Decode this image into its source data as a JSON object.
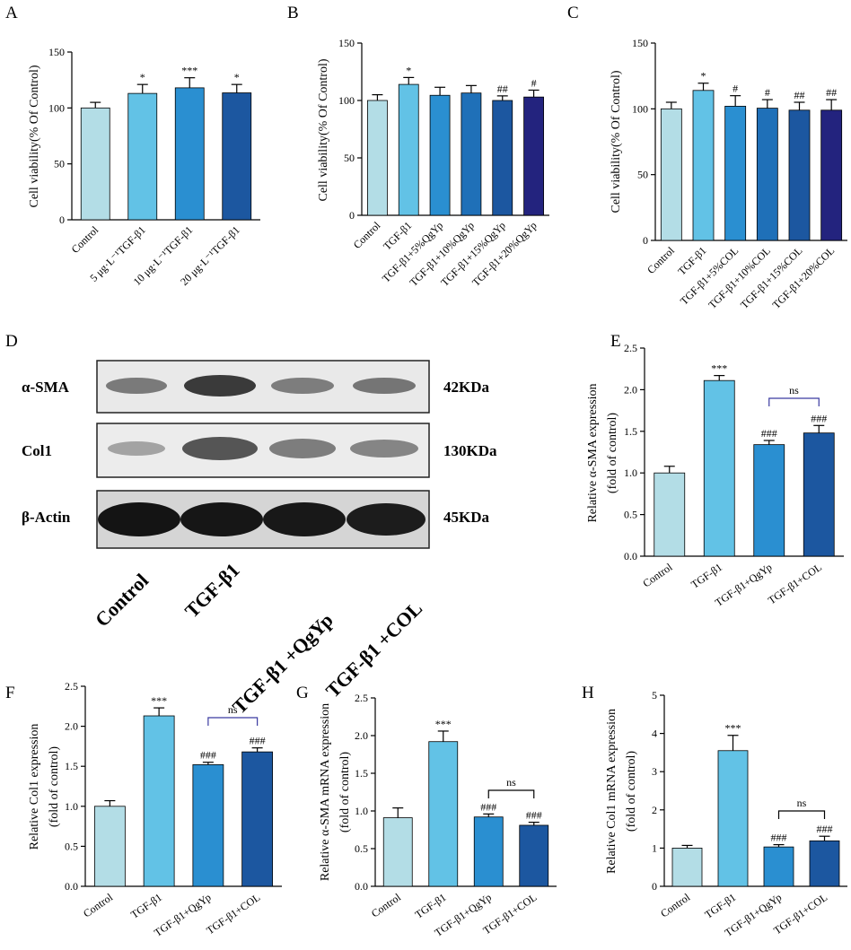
{
  "colors": {
    "c1": "#b3dde6",
    "c2": "#62c2e6",
    "c3": "#2a8fd1",
    "c4": "#1f70b8",
    "c5": "#1c57a0",
    "c6": "#23237e",
    "ns_bracket": "#3a3aa0",
    "axis": "#000000"
  },
  "western_blot": {
    "panel": "D",
    "rows": [
      {
        "label": "α-SMA",
        "kda": "42KDa"
      },
      {
        "label": "Col1",
        "kda": "130KDa"
      },
      {
        "label": "β-Actin",
        "kda": "45KDa"
      }
    ],
    "groups": [
      "Control",
      "TGF-β1",
      "TGF-β1 +QgYp",
      "TGF-β1 +COL"
    ]
  },
  "chart_data": [
    {
      "panel": "A",
      "type": "bar",
      "ylabel": "Cell viability(% Of Control)",
      "ylim": [
        0,
        150
      ],
      "yticks": [
        "0",
        "50",
        "100",
        "150"
      ],
      "categories": [
        "Control",
        "5 μg·L⁻¹TGF-β1",
        "10 μg·L⁻¹TGF-β1",
        "20 μg·L⁻¹TGF-β1"
      ],
      "values": [
        100,
        113,
        118,
        113.5
      ],
      "errors": [
        5,
        8,
        9,
        7.5
      ],
      "labels": [
        "",
        "*",
        "***",
        "*"
      ],
      "colors": [
        "c1",
        "c2",
        "c3",
        "c5"
      ]
    },
    {
      "panel": "B",
      "type": "bar",
      "ylabel": "Cell viability(% Of Control)",
      "ylim": [
        0,
        150
      ],
      "yticks": [
        "0",
        "50",
        "100",
        "150"
      ],
      "categories": [
        "Control",
        "TGF-β1",
        "TGF-β1+5%QgYp",
        "TGF-β1+10%QgYp",
        "TGF-β1+15%QgYp",
        "TGF-β1+20%QgYp"
      ],
      "values": [
        100,
        114,
        104.5,
        106.5,
        100,
        103
      ],
      "errors": [
        5,
        6,
        7,
        6.5,
        4,
        6
      ],
      "labels": [
        "",
        "*",
        "",
        "",
        "##",
        "#"
      ],
      "colors": [
        "c1",
        "c2",
        "c3",
        "c4",
        "c5",
        "c6"
      ]
    },
    {
      "panel": "C",
      "type": "bar",
      "ylabel": "Cell viability(% Of Control)",
      "ylim": [
        0,
        150
      ],
      "yticks": [
        "0",
        "50",
        "100",
        "150"
      ],
      "categories": [
        "Control",
        "TGF-β1",
        "TGF-β1+5%COL",
        "TGF-β1+10%COL",
        "TGF-β1+15%COL",
        "TGF-β1+20%COL"
      ],
      "values": [
        100,
        114,
        102,
        100.5,
        99,
        99
      ],
      "errors": [
        5,
        5.5,
        8,
        6.5,
        6,
        8
      ],
      "labels": [
        "",
        "*",
        "#",
        "#",
        "##",
        "##"
      ],
      "colors": [
        "c1",
        "c2",
        "c3",
        "c4",
        "c5",
        "c6"
      ]
    },
    {
      "panel": "E",
      "type": "bar",
      "ylabel": "Relative α-SMA  expression",
      "ylabel2": "(fold of control)",
      "ylim": [
        0,
        2.5
      ],
      "yticks": [
        "0.0",
        "0.5",
        "1.0",
        "1.5",
        "2.0",
        "2.5"
      ],
      "categories": [
        "Control",
        "TGF-β1",
        "TGF-β1+QgYp",
        "TGF-β1+COL"
      ],
      "values": [
        1.0,
        2.11,
        1.34,
        1.48
      ],
      "errors": [
        0.08,
        0.06,
        0.05,
        0.09
      ],
      "labels": [
        "",
        "***",
        "###",
        "###"
      ],
      "colors": [
        "c1",
        "c2",
        "c3",
        "c5"
      ],
      "ns_label": "ns"
    },
    {
      "panel": "F",
      "type": "bar",
      "ylabel": "Relative Col1  expression",
      "ylabel2": "(fold of control)",
      "ylim": [
        0,
        2.5
      ],
      "yticks": [
        "0.0",
        "0.5",
        "1.0",
        "1.5",
        "2.0",
        "2.5"
      ],
      "categories": [
        "Control",
        "TGF-β1",
        "TGF-β1+QgYp",
        "TGF-β1+COL"
      ],
      "values": [
        1.0,
        2.13,
        1.52,
        1.68
      ],
      "errors": [
        0.07,
        0.1,
        0.03,
        0.05
      ],
      "labels": [
        "",
        "***",
        "###",
        "###"
      ],
      "colors": [
        "c1",
        "c2",
        "c3",
        "c5"
      ],
      "ns_label": "ns"
    },
    {
      "panel": "G",
      "type": "bar",
      "ylabel": "Relative α-SMA mRNA expression",
      "ylabel2": "(fold of control)",
      "ylim": [
        0,
        2.5
      ],
      "yticks": [
        "0.0",
        "0.5",
        "1.0",
        "1.5",
        "2.0",
        "2.5"
      ],
      "categories": [
        "Control",
        "TGF-β1",
        "TGF-β1+QgYp",
        "TGF-β1+COL"
      ],
      "values": [
        0.91,
        1.92,
        0.92,
        0.81
      ],
      "errors": [
        0.13,
        0.14,
        0.04,
        0.04
      ],
      "labels": [
        "",
        "***",
        "###",
        "###"
      ],
      "colors": [
        "c1",
        "c2",
        "c3",
        "c5"
      ],
      "ns_label": "ns"
    },
    {
      "panel": "H",
      "type": "bar",
      "ylabel": "Relative Col1 mRNA expression",
      "ylabel2": "(fold of control)",
      "ylim": [
        0,
        5
      ],
      "yticks": [
        "0",
        "1",
        "2",
        "3",
        "4",
        "5"
      ],
      "categories": [
        "Control",
        "TGF-β1",
        "TGF-β1+QgYp",
        "TGF-β1+COL"
      ],
      "values": [
        1.0,
        3.55,
        1.03,
        1.19
      ],
      "errors": [
        0.07,
        0.4,
        0.06,
        0.12
      ],
      "labels": [
        "",
        "***",
        "###",
        "###"
      ],
      "colors": [
        "c1",
        "c2",
        "c3",
        "c5"
      ],
      "ns_label": "ns"
    }
  ]
}
